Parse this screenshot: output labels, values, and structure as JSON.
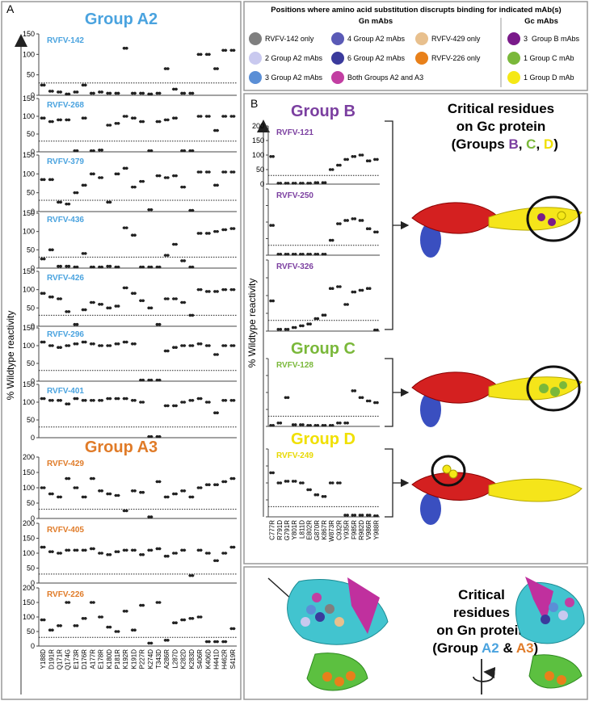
{
  "figure": {
    "legend": {
      "title": "Positions where amino acid substitution discrupts binding for indicated mAb(s)",
      "gn_header": "Gn mAbs",
      "gc_header": "Gc mAbs",
      "gn_items": [
        {
          "label": "RVFV-142 only",
          "color": "#7f7f7f"
        },
        {
          "label": "2 Group A2 mAbs",
          "color": "#c9c9ef"
        },
        {
          "label": "3 Group A2 mAbs",
          "color": "#5b8fd6"
        },
        {
          "label": "4 Group A2 mAbs",
          "color": "#5a5ab6"
        },
        {
          "label": "6 Group A2 mAbs",
          "color": "#3a3a9c"
        },
        {
          "label": "Both Groups A2 and A3",
          "color": "#c23ea2"
        },
        {
          "label": "RVFV-429 only",
          "color": "#e8c08e"
        },
        {
          "label": "RVFV-226 only",
          "color": "#e8801a"
        }
      ],
      "gc_items": [
        {
          "label": "3  Group B mAbs",
          "color": "#7a1a8a"
        },
        {
          "label": "1 Group C mAb",
          "color": "#7ab83a"
        },
        {
          "label": "1 Group D mAb",
          "color": "#f5e816"
        }
      ]
    },
    "panel_a": {
      "label": "A",
      "group_a2": "Group A2",
      "group_a3": "Group A3",
      "y_label": "% Wildtype reactivity",
      "categories": [
        "Y188D",
        "D191R",
        "Q171R",
        "Q174G",
        "E173R",
        "D176R",
        "A177R",
        "E178R",
        "K180D",
        "P181R",
        "K192R",
        "K191D",
        "P227R",
        "K274D",
        "T343D",
        "A286R",
        "L287D",
        "K282D",
        "K283D",
        "S406R",
        "K406D",
        "H441D",
        "H462R",
        "S419R"
      ]
    },
    "panel_b": {
      "label": "B",
      "group_b": "Group B",
      "group_c": "Group C",
      "group_d": "Group D",
      "y_label": "% Wildtype reactivity",
      "categories": [
        "C777R",
        "R791D",
        "G791R",
        "Y801R",
        "L811D",
        "E802R",
        "G870R",
        "K867R",
        "W873R",
        "C932R",
        "Y935R",
        "F985R",
        "R982D",
        "V986R",
        "Y988R"
      ]
    },
    "gc_heading": {
      "line1": "Critical residues",
      "line2": "on Gc protein",
      "line3": [
        "(Groups ",
        "B",
        ", ",
        "C",
        ", ",
        "D",
        ")"
      ]
    },
    "gn_heading": {
      "line1": "Critical",
      "line2": "residues",
      "line3": "on Gn protein",
      "line4": [
        "(Group ",
        "A2",
        " & ",
        "A3",
        ")"
      ]
    }
  },
  "chart_data": [
    {
      "type": "scatter",
      "title": "RVFV-142",
      "title_color": "#4aa3df",
      "color": "#222222",
      "ylim": [
        0,
        150
      ],
      "yticks": [
        0,
        50,
        100,
        150
      ],
      "reference_line": 30,
      "values": [
        25,
        10,
        8,
        3,
        8,
        25,
        5,
        8,
        5,
        5,
        115,
        5,
        5,
        3,
        5,
        65,
        15,
        5,
        5,
        100,
        100,
        65,
        110,
        110
      ]
    },
    {
      "type": "scatter",
      "title": "RVFV-268",
      "title_color": "#4aa3df",
      "color": "#222222",
      "ylim": [
        0,
        150
      ],
      "yticks": [
        0,
        50,
        100,
        150
      ],
      "reference_line": 30,
      "values": [
        95,
        85,
        90,
        90,
        3,
        95,
        3,
        5,
        75,
        80,
        100,
        95,
        85,
        3,
        85,
        90,
        95,
        3,
        3,
        100,
        100,
        60,
        100,
        100
      ]
    },
    {
      "type": "scatter",
      "title": "RVFV-379",
      "title_color": "#4aa3df",
      "color": "#222222",
      "ylim": [
        0,
        150
      ],
      "yticks": [
        0,
        50,
        100,
        150
      ],
      "reference_line": 30,
      "values": [
        85,
        85,
        25,
        20,
        50,
        70,
        100,
        90,
        25,
        100,
        115,
        65,
        80,
        5,
        95,
        90,
        95,
        65,
        3,
        105,
        105,
        70,
        105,
        105
      ]
    },
    {
      "type": "scatter",
      "title": "RVFV-436",
      "title_color": "#4aa3df",
      "color": "#222222",
      "ylim": [
        0,
        150
      ],
      "yticks": [
        0,
        50,
        100,
        150
      ],
      "reference_line": 30,
      "values": [
        25,
        50,
        5,
        5,
        3,
        40,
        3,
        3,
        5,
        3,
        110,
        90,
        3,
        3,
        3,
        35,
        65,
        20,
        3,
        95,
        95,
        100,
        105,
        108
      ]
    },
    {
      "type": "scatter",
      "title": "RVFV-426",
      "title_color": "#4aa3df",
      "color": "#222222",
      "ylim": [
        0,
        150
      ],
      "yticks": [
        0,
        50,
        100,
        150
      ],
      "reference_line": 30,
      "values": [
        90,
        80,
        75,
        40,
        5,
        45,
        65,
        60,
        50,
        55,
        105,
        90,
        70,
        50,
        5,
        75,
        75,
        65,
        30,
        100,
        95,
        95,
        100,
        100
      ]
    },
    {
      "type": "scatter",
      "title": "RVFV-296",
      "title_color": "#4aa3df",
      "color": "#222222",
      "ylim": [
        0,
        150
      ],
      "yticks": [
        0,
        50,
        100,
        150
      ],
      "reference_line": 30,
      "values": [
        110,
        100,
        95,
        100,
        105,
        110,
        105,
        100,
        100,
        105,
        110,
        105,
        3,
        3,
        3,
        85,
        95,
        100,
        100,
        105,
        100,
        75,
        100,
        100
      ]
    },
    {
      "type": "scatter",
      "title": "RVFV-401",
      "title_color": "#4aa3df",
      "color": "#222222",
      "ylim": [
        0,
        150
      ],
      "yticks": [
        0,
        50,
        100,
        150
      ],
      "reference_line": 30,
      "values": [
        110,
        105,
        105,
        95,
        110,
        105,
        105,
        105,
        110,
        110,
        110,
        105,
        100,
        3,
        3,
        90,
        90,
        100,
        105,
        110,
        100,
        70,
        105,
        105
      ]
    },
    {
      "type": "scatter",
      "title": "RVFV-429",
      "title_color": "#e07b28",
      "color": "#222222",
      "ylim": [
        0,
        200
      ],
      "yticks": [
        0,
        50,
        100,
        150,
        200
      ],
      "reference_line": 30,
      "values": [
        100,
        80,
        70,
        130,
        100,
        70,
        130,
        90,
        80,
        75,
        25,
        90,
        85,
        5,
        120,
        70,
        80,
        90,
        70,
        100,
        110,
        110,
        120,
        130
      ]
    },
    {
      "type": "scatter",
      "title": "RVFV-405",
      "title_color": "#e07b28",
      "color": "#222222",
      "ylim": [
        0,
        200
      ],
      "yticks": [
        0,
        50,
        100,
        150,
        200
      ],
      "reference_line": 30,
      "values": [
        120,
        105,
        100,
        110,
        110,
        110,
        115,
        100,
        95,
        105,
        110,
        110,
        95,
        110,
        115,
        90,
        100,
        110,
        25,
        110,
        100,
        75,
        100,
        120
      ]
    },
    {
      "type": "scatter",
      "title": "RVFV-226",
      "title_color": "#e07b28",
      "color": "#222222",
      "ylim": [
        0,
        200
      ],
      "yticks": [
        0,
        50,
        100,
        150,
        200
      ],
      "reference_line": 30,
      "values": [
        90,
        55,
        70,
        150,
        70,
        95,
        150,
        100,
        65,
        50,
        120,
        55,
        140,
        10,
        150,
        20,
        80,
        90,
        95,
        100,
        15,
        15,
        15,
        60
      ]
    },
    {
      "type": "scatter",
      "title": "RVFV-121",
      "title_color": "#7b3fa0",
      "color": "#222222",
      "ylim": [
        0,
        200
      ],
      "yticks": [
        0,
        50,
        100,
        150,
        200
      ],
      "reference_line": 30,
      "values": [
        95,
        3,
        3,
        3,
        3,
        3,
        5,
        5,
        50,
        65,
        85,
        95,
        100,
        80,
        85
      ]
    },
    {
      "type": "scatter",
      "title": "RVFV-250",
      "title_color": "#7b3fa0",
      "color": "#222222",
      "ylim": [
        0,
        200
      ],
      "yticks": [
        0,
        50,
        100,
        150,
        200
      ],
      "reference_line": 30,
      "values": [
        90,
        3,
        3,
        3,
        3,
        3,
        3,
        3,
        45,
        95,
        105,
        110,
        105,
        80,
        70
      ]
    },
    {
      "type": "scatter",
      "title": "RVFV-326",
      "title_color": "#7b3fa0",
      "color": "#222222",
      "ylim": [
        0,
        200
      ],
      "yticks": [
        0,
        50,
        100,
        150,
        200
      ],
      "reference_line": 30,
      "values": [
        85,
        5,
        5,
        10,
        15,
        20,
        35,
        45,
        120,
        125,
        75,
        110,
        115,
        120,
        3
      ]
    },
    {
      "type": "scatter",
      "title": "RVFV-128",
      "title_color": "#7ab83a",
      "color": "#222222",
      "ylim": [
        0,
        200
      ],
      "yticks": [
        0,
        50,
        100,
        150,
        200
      ],
      "reference_line": 30,
      "values": [
        3,
        10,
        85,
        5,
        5,
        3,
        3,
        3,
        3,
        10,
        10,
        105,
        85,
        75,
        70
      ]
    },
    {
      "type": "scatter",
      "title": "RVFV-249",
      "title_color": "#e8d800",
      "color": "#222222",
      "ylim": [
        0,
        200
      ],
      "yticks": [
        0,
        50,
        100,
        150,
        200
      ],
      "reference_line": 30,
      "values": [
        130,
        100,
        105,
        105,
        100,
        80,
        65,
        60,
        100,
        100,
        5,
        5,
        5,
        5,
        3
      ]
    }
  ]
}
